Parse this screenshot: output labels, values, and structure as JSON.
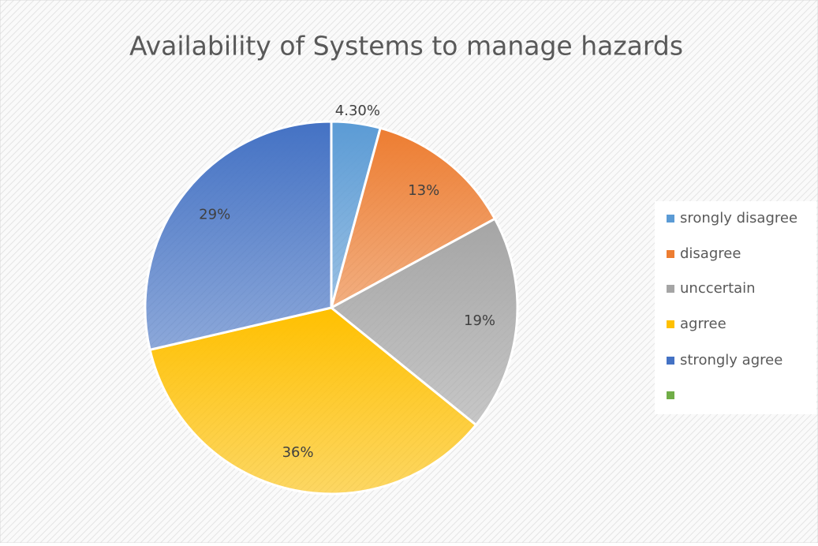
{
  "chart_data": {
    "type": "pie",
    "title": "Availability of Systems to manage hazards",
    "categories": [
      "srongly disagree",
      "disagree",
      "unccertain",
      "agrree",
      "strongly agree",
      null
    ],
    "values": [
      4.3,
      13,
      19,
      36,
      29,
      0
    ],
    "value_labels": [
      "4.30%",
      "13%",
      "19%",
      "36%",
      "29%",
      null
    ],
    "colors": [
      "#5b9bd5",
      "#ed7d31",
      "#a5a5a5",
      "#ffc000",
      "#4472c4",
      "#70ad47"
    ],
    "legend": "right"
  }
}
